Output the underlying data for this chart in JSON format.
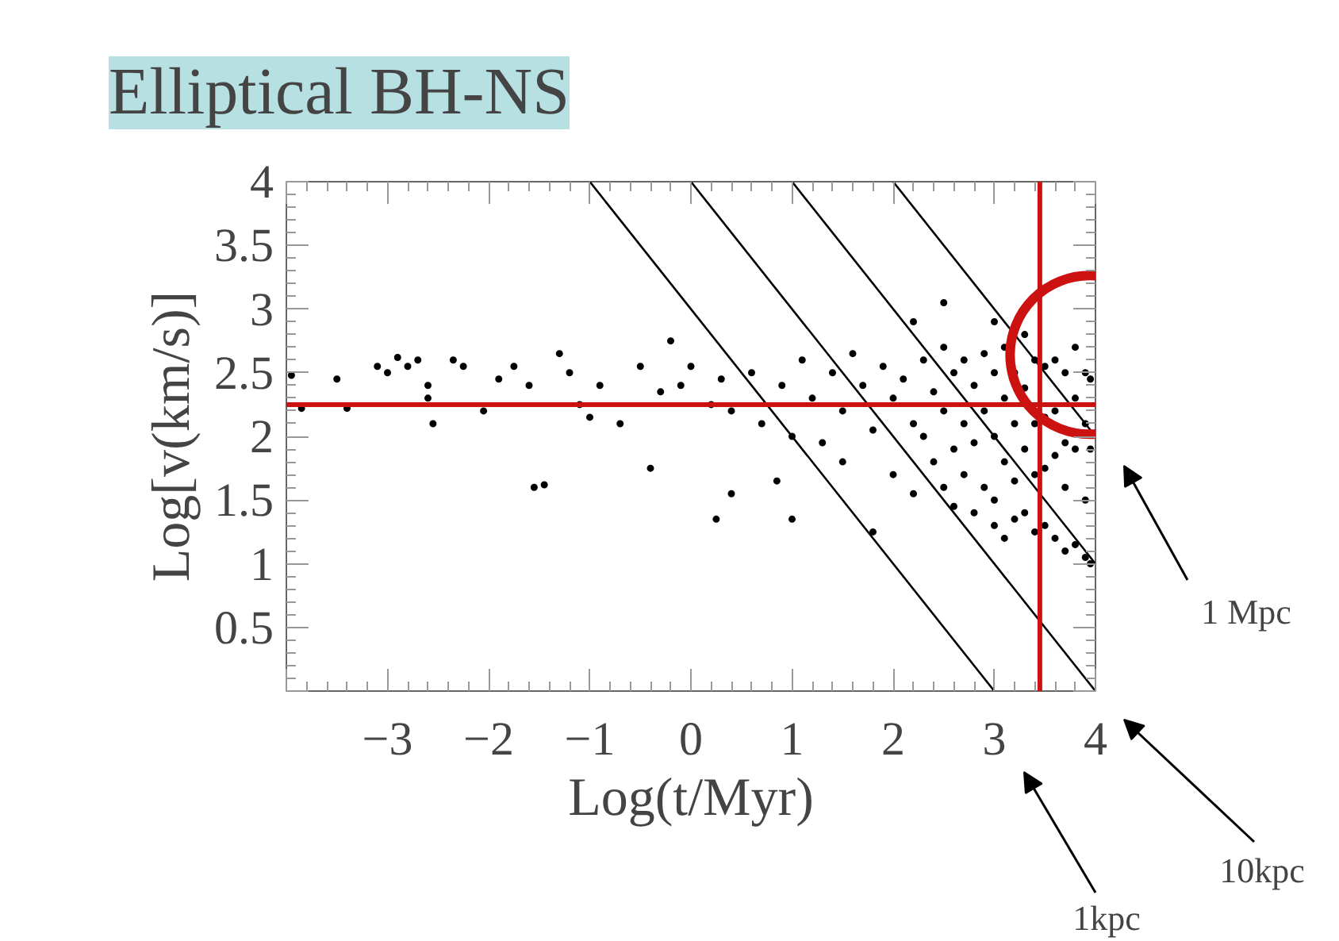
{
  "chart_data": {
    "type": "scatter",
    "title": "Elliptical BH-NS",
    "xlabel": "Log(t/Myr)",
    "ylabel": "Log[v(km/s)]",
    "xlim": [
      -4,
      4
    ],
    "ylim": [
      0,
      4
    ],
    "xticks": [
      {
        "value": -4,
        "label": null
      },
      -3,
      -2,
      -1,
      0,
      1,
      2,
      3,
      4
    ],
    "yticks": [
      {
        "value": 0,
        "label": null
      },
      0.5,
      1,
      1.5,
      2,
      2.5,
      3,
      3.5,
      4
    ],
    "grid": false,
    "marker": "circle",
    "annotations": [
      "1 Mpc",
      "10kpc",
      "1kpc"
    ],
    "ref_lines": [
      {
        "axis": "y",
        "value": 2.25,
        "color": "#cc1111"
      },
      {
        "axis": "x",
        "value": 3.45,
        "color": "#cc1111"
      }
    ],
    "series": [
      {
        "color": "#000000",
        "x": [
          -3.95,
          -3.85,
          -3.5,
          -3.4,
          -3.1,
          -3.0,
          -2.9,
          -2.8,
          -2.7,
          -2.6,
          -2.6,
          -2.55,
          -2.35,
          -2.25,
          -2.05,
          -1.9,
          -1.75,
          -1.6,
          -1.55,
          -1.45,
          -1.3,
          -1.2,
          -1.1,
          -1.0,
          -0.9,
          -0.7,
          -0.5,
          -0.4,
          -0.3,
          -0.2,
          -0.1,
          0.0,
          0.2,
          0.3,
          0.4,
          0.4,
          0.6,
          0.7,
          0.85,
          0.9,
          0.25,
          1.0,
          1.1,
          1.2,
          1.3,
          1.4,
          1.5,
          1.5,
          1.6,
          1.7,
          1.8,
          1.9,
          2.0,
          2.0,
          2.1,
          2.2,
          2.2,
          2.3,
          2.3,
          2.4,
          2.4,
          2.5,
          2.5,
          2.5,
          2.6,
          2.6,
          2.6,
          2.7,
          2.7,
          2.7,
          2.8,
          2.8,
          2.8,
          2.9,
          2.9,
          2.9,
          3.0,
          3.0,
          3.0,
          3.0,
          3.1,
          3.1,
          3.1,
          3.1,
          3.2,
          3.2,
          3.2,
          3.2,
          3.3,
          3.3,
          3.3,
          3.3,
          3.4,
          3.4,
          3.4,
          3.4,
          3.5,
          3.5,
          3.5,
          3.5,
          3.6,
          3.6,
          3.6,
          3.6,
          3.7,
          3.7,
          3.7,
          3.7,
          3.8,
          3.8,
          3.8,
          3.8,
          3.9,
          3.9,
          3.9,
          3.9,
          3.95,
          3.95,
          3.95,
          2.2,
          2.5,
          3.0,
          1.0,
          1.8
        ],
        "values": [
          2.48,
          2.22,
          2.45,
          2.22,
          2.55,
          2.5,
          2.62,
          2.55,
          2.6,
          2.4,
          2.3,
          2.1,
          2.6,
          2.55,
          2.2,
          2.45,
          2.55,
          2.4,
          1.6,
          1.62,
          2.65,
          2.5,
          2.25,
          2.15,
          2.4,
          2.1,
          2.55,
          1.75,
          2.35,
          2.75,
          2.4,
          2.55,
          2.25,
          2.45,
          1.55,
          2.2,
          2.5,
          2.1,
          1.65,
          2.4,
          1.35,
          2.0,
          2.6,
          2.3,
          1.95,
          2.5,
          2.2,
          1.8,
          2.65,
          2.4,
          2.05,
          2.55,
          2.3,
          1.7,
          2.45,
          2.1,
          1.55,
          2.6,
          2.0,
          2.35,
          1.8,
          2.7,
          2.2,
          1.6,
          2.5,
          1.9,
          1.45,
          2.6,
          2.1,
          1.7,
          2.4,
          1.95,
          1.4,
          2.65,
          2.2,
          1.6,
          2.5,
          2.0,
          1.5,
          1.3,
          2.7,
          2.3,
          1.8,
          1.2,
          2.5,
          2.1,
          1.65,
          1.35,
          2.8,
          2.38,
          1.9,
          1.4,
          2.6,
          2.1,
          1.7,
          1.25,
          2.55,
          2.15,
          1.75,
          1.3,
          2.6,
          2.2,
          1.85,
          1.2,
          2.5,
          1.95,
          1.6,
          1.1,
          2.7,
          2.3,
          1.9,
          1.15,
          2.5,
          2.1,
          1.5,
          1.05,
          2.45,
          1.9,
          1.0,
          2.9,
          3.05,
          2.9,
          1.35,
          1.25
        ]
      },
      {
        "type": "line",
        "marker": "none",
        "color": "#000000",
        "x": [
          -1,
          3
        ],
        "values": [
          4,
          0
        ]
      },
      {
        "type": "line",
        "marker": "none",
        "color": "#000000",
        "x": [
          0,
          4
        ],
        "values": [
          4,
          0
        ]
      },
      {
        "type": "line",
        "marker": "none",
        "color": "#000000",
        "x": [
          1,
          4
        ],
        "values": [
          4,
          1
        ]
      },
      {
        "type": "line",
        "marker": "none",
        "color": "#000000",
        "x": [
          2,
          4
        ],
        "values": [
          4,
          2
        ]
      }
    ]
  }
}
